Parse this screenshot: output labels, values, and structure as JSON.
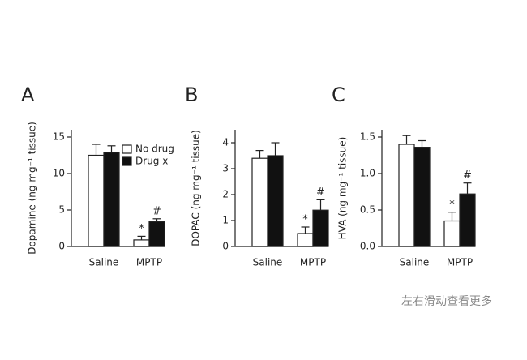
{
  "chart_data": [
    {
      "type": "bar",
      "panel": "A",
      "ylabel": "Dopamine (ng mg⁻¹ tissue)",
      "categories": [
        "Saline",
        "MPTP"
      ],
      "series": [
        {
          "name": "No drug",
          "color": "#ffffff",
          "values": [
            12.5,
            0.9
          ],
          "errors": [
            1.5,
            0.5
          ]
        },
        {
          "name": "Drug x",
          "color": "#111111",
          "values": [
            12.9,
            3.4
          ],
          "errors": [
            0.9,
            0.4
          ]
        }
      ],
      "annotations": [
        {
          "text": "*",
          "series": 0,
          "index": 1
        },
        {
          "text": "#",
          "series": 1,
          "index": 1
        }
      ],
      "ylim": [
        0,
        16
      ],
      "yticks": [
        0,
        5,
        10,
        15
      ],
      "grid": false,
      "legend": "upper right"
    },
    {
      "type": "bar",
      "panel": "B",
      "ylabel": "DOPAC (ng mg⁻¹ tissue)",
      "categories": [
        "Saline",
        "MPTP"
      ],
      "series": [
        {
          "color": "#ffffff",
          "values": [
            3.4,
            0.5
          ],
          "errors": [
            0.3,
            0.25
          ]
        },
        {
          "color": "#111111",
          "values": [
            3.5,
            1.4
          ],
          "errors": [
            0.5,
            0.4
          ]
        }
      ],
      "annotations": [
        {
          "text": "*",
          "series": 0,
          "index": 1
        },
        {
          "text": "#",
          "series": 1,
          "index": 1
        }
      ],
      "ylim": [
        0,
        4.5
      ],
      "yticks": [
        0,
        1,
        2,
        3,
        4
      ],
      "grid": false
    },
    {
      "type": "bar",
      "panel": "C",
      "ylabel": "HVA (ng mg⁻¹ tissue)",
      "categories": [
        "Saline",
        "MPTP"
      ],
      "series": [
        {
          "color": "#ffffff",
          "values": [
            1.4,
            0.35
          ],
          "errors": [
            0.12,
            0.12
          ]
        },
        {
          "color": "#111111",
          "values": [
            1.36,
            0.72
          ],
          "errors": [
            0.09,
            0.15
          ]
        }
      ],
      "annotations": [
        {
          "text": "*",
          "series": 0,
          "index": 1
        },
        {
          "text": "#",
          "series": 1,
          "index": 1
        }
      ],
      "ylim": [
        0,
        1.6
      ],
      "yticks": [
        {
          "value": 0,
          "label": "0.0"
        },
        0.5,
        {
          "value": 1,
          "label": "1.0"
        },
        1.5
      ],
      "grid": false
    }
  ],
  "footer_note": "左右滑动查看更多"
}
